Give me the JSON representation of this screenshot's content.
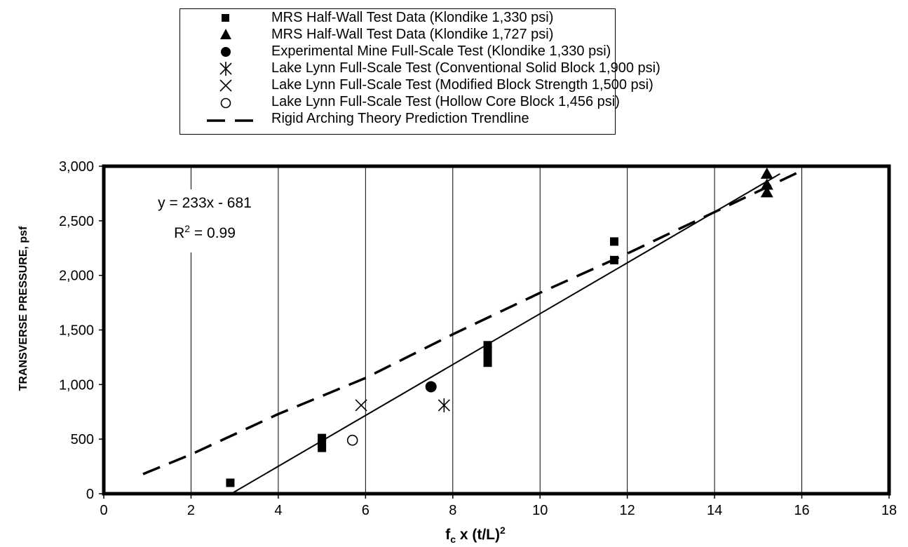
{
  "chart_data": {
    "type": "scatter",
    "xlabel_parts": [
      "f",
      "c",
      " x (t/L)",
      "2"
    ],
    "ylabel": "TRANSVERSE PRESSURE, psf",
    "xlim": [
      0,
      18
    ],
    "ylim": [
      0,
      3000
    ],
    "xticks": [
      "0",
      "2",
      "4",
      "6",
      "8",
      "10",
      "12",
      "14",
      "16",
      "18"
    ],
    "yticks": [
      "0",
      "500",
      "1,000",
      "1,500",
      "2,000",
      "2,500",
      "3,000"
    ],
    "xtick_values": [
      0,
      2,
      4,
      6,
      8,
      10,
      12,
      14,
      16,
      18
    ],
    "ytick_values": [
      0,
      500,
      1000,
      1500,
      2000,
      2500,
      3000
    ],
    "grid": "vertical",
    "legend_position": "top",
    "series": [
      {
        "name": "MRS Half-Wall Test Data (Klondike 1,330 psi)",
        "marker": "square",
        "color": "#000000",
        "points": [
          [
            2.9,
            100
          ],
          [
            5.0,
            420
          ],
          [
            5.0,
            460
          ],
          [
            5.0,
            510
          ],
          [
            8.8,
            1200
          ],
          [
            8.8,
            1260
          ],
          [
            8.8,
            1310
          ],
          [
            8.8,
            1360
          ],
          [
            11.7,
            2140
          ],
          [
            11.7,
            2310
          ]
        ]
      },
      {
        "name": "MRS Half-Wall Test Data (Klondike 1,727 psi)",
        "marker": "triangle",
        "color": "#000000",
        "points": [
          [
            15.2,
            2760
          ],
          [
            15.2,
            2830
          ],
          [
            15.2,
            2930
          ]
        ]
      },
      {
        "name": "Experimental Mine Full-Scale Test (Klondike 1,330 psi)",
        "marker": "circle",
        "color": "#000000",
        "points": [
          [
            7.5,
            980
          ]
        ]
      },
      {
        "name": "Lake Lynn Full-Scale Test (Conventional Solid Block 1,900 psi)",
        "marker": "asterisk",
        "color": "#000000",
        "points": [
          [
            7.8,
            810
          ]
        ]
      },
      {
        "name": "Lake Lynn Full-Scale Test (Modified Block Strength 1,500 psi)",
        "marker": "x",
        "color": "#000000",
        "points": [
          [
            5.9,
            810
          ]
        ]
      },
      {
        "name": "Lake Lynn Full-Scale Test (Hollow Core Block 1,456 psi)",
        "marker": "open-circle",
        "color": "#000000",
        "points": [
          [
            5.7,
            490
          ]
        ]
      },
      {
        "name": "Rigid Arching Theory Prediction Trendline",
        "marker": "dashed-line",
        "color": "#000000",
        "points": [
          [
            0.9,
            180
          ],
          [
            2.0,
            360
          ],
          [
            4.0,
            730
          ],
          [
            6.0,
            1060
          ],
          [
            8.0,
            1460
          ],
          [
            10.0,
            1840
          ],
          [
            12.0,
            2200
          ],
          [
            14.0,
            2580
          ],
          [
            15.9,
            2940
          ]
        ]
      }
    ],
    "fit_line": {
      "slope": 233,
      "intercept": -681,
      "x_range": [
        2.92,
        15.5
      ]
    },
    "annotation": {
      "equation": "y = 233x - 681",
      "r2_prefix": "R",
      "r2_sup": "2",
      "r2_suffix": " = 0.99"
    }
  }
}
